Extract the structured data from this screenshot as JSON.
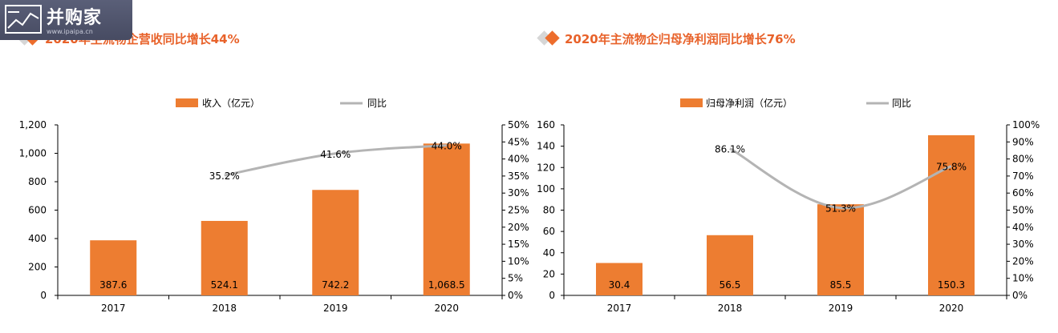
{
  "watermark": {
    "brand": "并购家",
    "url": "www.ipaipa.cn"
  },
  "chart_data": [
    {
      "type": "bar",
      "title": "2020年主流物企营收同比增长44%",
      "categories": [
        "2017",
        "2018",
        "2019",
        "2020"
      ],
      "series": [
        {
          "name": "收入（亿元）",
          "type": "bar",
          "axis": "left",
          "color": "#ed7d31",
          "values": [
            387.6,
            524.1,
            742.2,
            1068.5
          ],
          "labels": [
            "387.6",
            "524.1",
            "742.2",
            "1,068.5"
          ]
        },
        {
          "name": "同比",
          "type": "line",
          "axis": "right",
          "color": "#b4b4b4",
          "values": [
            null,
            35.2,
            41.6,
            44.0
          ],
          "labels": [
            "",
            "35.2%",
            "41.6%",
            "44.0%"
          ]
        }
      ],
      "left_axis": {
        "ylim": [
          0,
          1200
        ],
        "ticks": [
          "0",
          "200",
          "400",
          "600",
          "800",
          "1,000",
          "1,200"
        ]
      },
      "right_axis": {
        "ylim": [
          0,
          50
        ],
        "ticks": [
          "0%",
          "5%",
          "10%",
          "15%",
          "20%",
          "25%",
          "30%",
          "35%",
          "40%",
          "45%",
          "50%"
        ]
      },
      "legend": "top-center",
      "grid": false
    },
    {
      "type": "bar",
      "title": "2020年主流物企归母净利润同比增长76%",
      "categories": [
        "2017",
        "2018",
        "2019",
        "2020"
      ],
      "series": [
        {
          "name": "归母净利润（亿元）",
          "type": "bar",
          "axis": "left",
          "color": "#ed7d31",
          "values": [
            30.4,
            56.5,
            85.5,
            150.3
          ],
          "labels": [
            "30.4",
            "56.5",
            "85.5",
            "150.3"
          ]
        },
        {
          "name": "同比",
          "type": "line",
          "axis": "right",
          "color": "#b4b4b4",
          "values": [
            null,
            86.1,
            51.3,
            75.8
          ],
          "labels": [
            "",
            "86.1%",
            "51.3%",
            "75.8%"
          ]
        }
      ],
      "left_axis": {
        "ylim": [
          0,
          160
        ],
        "ticks": [
          "0",
          "20",
          "40",
          "60",
          "80",
          "100",
          "120",
          "140",
          "160"
        ]
      },
      "right_axis": {
        "ylim": [
          0,
          100
        ],
        "ticks": [
          "0%",
          "10%",
          "20%",
          "30%",
          "40%",
          "50%",
          "60%",
          "70%",
          "80%",
          "90%",
          "100%"
        ]
      },
      "legend": "top-center",
      "grid": false
    }
  ]
}
